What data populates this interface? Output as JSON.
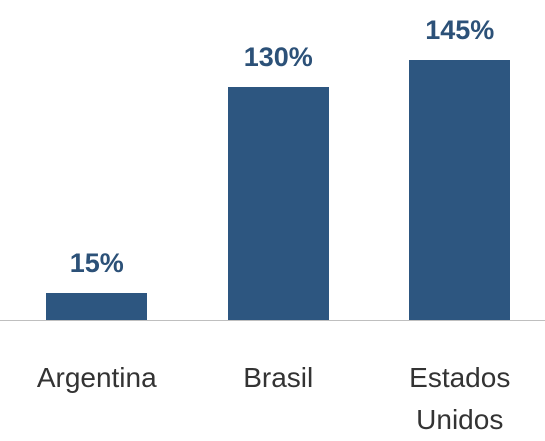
{
  "chart_data": {
    "type": "bar",
    "categories": [
      "Argentina",
      "Brasil",
      "Estados Unidos"
    ],
    "values": [
      15,
      130,
      145
    ],
    "value_labels": [
      "15%",
      "130%",
      "145%"
    ],
    "color": "#2d5680"
  }
}
